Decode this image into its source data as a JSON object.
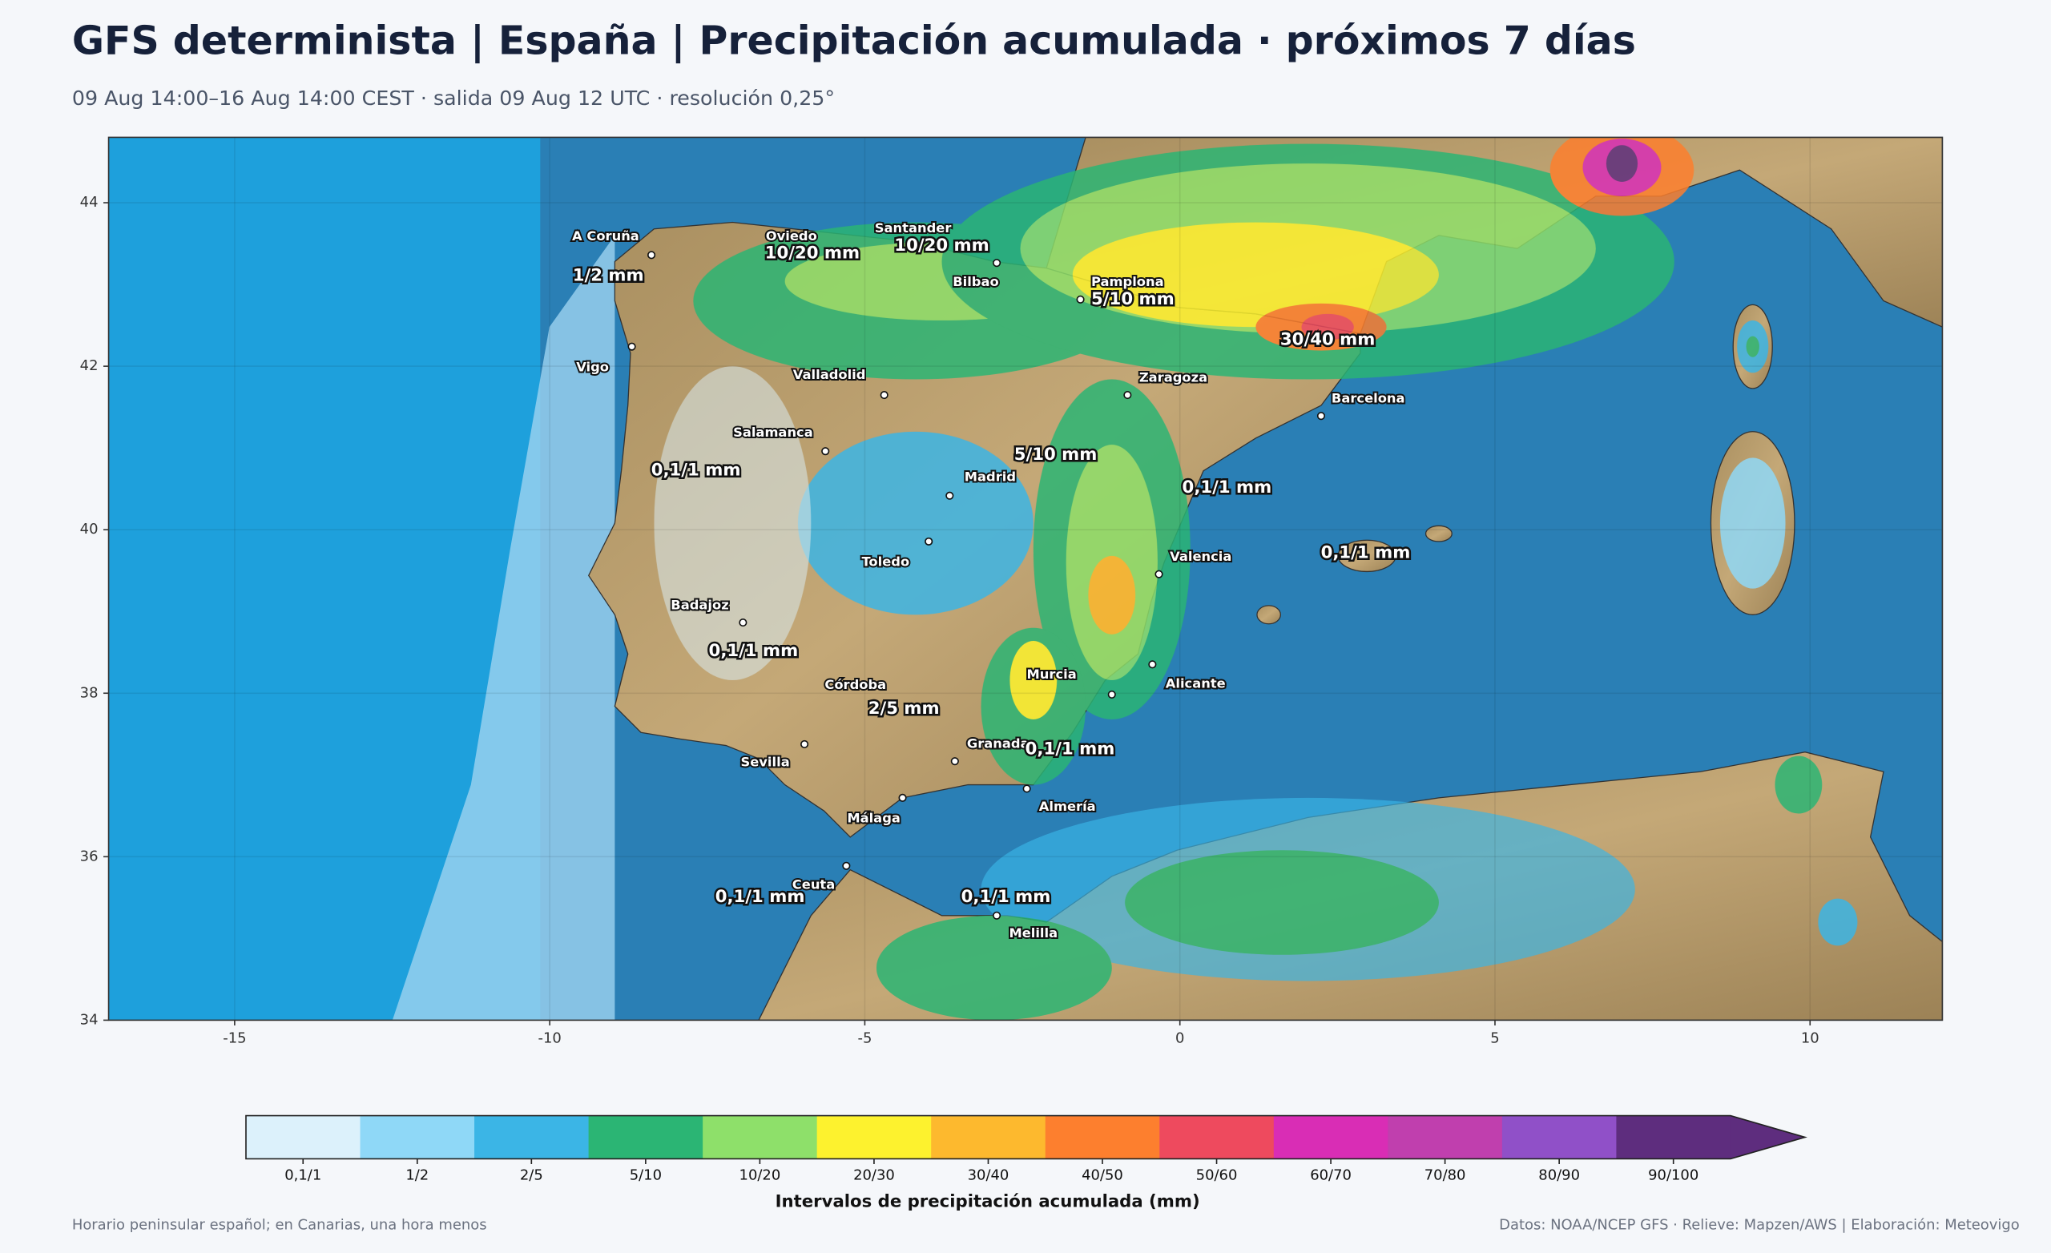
{
  "header": {
    "title": "GFS determinista | España | Precipitación acumulada · próximos 7 días",
    "subtitle": "09 Aug 14:00–16 Aug 14:00 CEST · salida 09 Aug 12 UTC · resolución 0,25°"
  },
  "map": {
    "xlim": [
      -17,
      12.1
    ],
    "ylim": [
      34,
      44.8
    ],
    "xticks": [
      -15,
      -10,
      -5,
      0,
      5,
      10
    ],
    "yticks": [
      34,
      36,
      38,
      40,
      42,
      44
    ],
    "cities": [
      "A Coruña",
      "Oviedo",
      "Santander",
      "Bilbao",
      "Pamplona",
      "Vigo",
      "Valladolid",
      "Zaragoza",
      "Barcelona",
      "Salamanca",
      "Madrid",
      "Toledo",
      "Valencia",
      "Badajoz",
      "Murcia",
      "Alicante",
      "Córdoba",
      "Granada",
      "Sevilla",
      "Almería",
      "Málaga",
      "Ceuta",
      "Melilla"
    ],
    "amounts": [
      "10/20 mm",
      "10/20 mm",
      "1/2 mm",
      "5/10 mm",
      "30/40 mm",
      "0,1/1 mm",
      "5/10 mm",
      "0,1/1 mm",
      "0,1/1 mm",
      "0,1/1 mm",
      "2/5 mm",
      "0,1/1 mm",
      "0,1/1 mm",
      "0,1/1 mm"
    ]
  },
  "colorbar": {
    "title": "Intervalos de precipitación acumulada (mm)",
    "labels": [
      "0,1/1",
      "1/2",
      "2/5",
      "5/10",
      "10/20",
      "20/30",
      "30/40",
      "40/50",
      "50/60",
      "60/70",
      "70/80",
      "80/90",
      "90/100"
    ],
    "colors": [
      "#dcf1fb",
      "#8fd8f7",
      "#3bb5e6",
      "#2bb574",
      "#8ee06a",
      "#fdf22e",
      "#fdb92e",
      "#fd7f2e",
      "#ee4a5e",
      "#d92db5",
      "#c03fae",
      "#9050c8",
      "#5e2d7e"
    ]
  },
  "footer": {
    "left": "Horario peninsular español; en Canarias, una hora menos",
    "right": "Datos: NOAA/NCEP GFS · Relieve: Mapzen/AWS | Elaboración: Meteovigo"
  }
}
